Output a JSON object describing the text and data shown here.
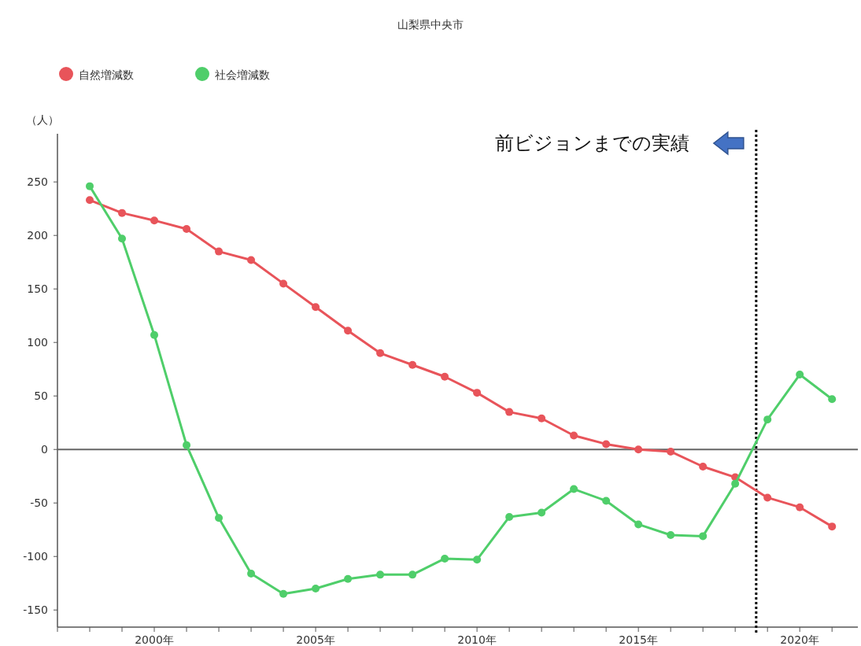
{
  "chart_data": {
    "type": "line",
    "title": "山梨県中央市",
    "ylabel": "（人）",
    "x": [
      1998,
      1999,
      2000,
      2001,
      2002,
      2003,
      2004,
      2005,
      2006,
      2007,
      2008,
      2009,
      2010,
      2011,
      2012,
      2013,
      2014,
      2015,
      2016,
      2017,
      2018,
      2019,
      2020,
      2021
    ],
    "series": [
      {
        "name": "自然増減数",
        "color": "#e8545a",
        "values": [
          233,
          221,
          214,
          206,
          185,
          177,
          155,
          133,
          111,
          90,
          79,
          68,
          53,
          35,
          29,
          13,
          5,
          0,
          -2,
          -16,
          -26,
          -45,
          -54,
          -72
        ]
      },
      {
        "name": "社会増減数",
        "color": "#4fce6a",
        "values": [
          246,
          197,
          107,
          4,
          -64,
          -116,
          -135,
          -130,
          -121,
          -117,
          -117,
          -102,
          -103,
          -63,
          -59,
          -37,
          -48,
          -70,
          -80,
          -81,
          -32,
          28,
          70,
          47
        ]
      }
    ],
    "xlim": [
      1997,
      2021.8
    ],
    "xticks": [
      {
        "value": 1997,
        "label": null
      },
      {
        "value": 1998,
        "label": null
      },
      {
        "value": 1999,
        "label": null
      },
      {
        "value": 2000,
        "label": "2000年"
      },
      {
        "value": 2001,
        "label": null
      },
      {
        "value": 2002,
        "label": null
      },
      {
        "value": 2003,
        "label": null
      },
      {
        "value": 2004,
        "label": null
      },
      {
        "value": 2005,
        "label": "2005年"
      },
      {
        "value": 2006,
        "label": null
      },
      {
        "value": 2007,
        "label": null
      },
      {
        "value": 2008,
        "label": null
      },
      {
        "value": 2009,
        "label": null
      },
      {
        "value": 2010,
        "label": "2010年"
      },
      {
        "value": 2011,
        "label": null
      },
      {
        "value": 2012,
        "label": null
      },
      {
        "value": 2013,
        "label": null
      },
      {
        "value": 2014,
        "label": null
      },
      {
        "value": 2015,
        "label": "2015年"
      },
      {
        "value": 2016,
        "label": null
      },
      {
        "value": 2017,
        "label": null
      },
      {
        "value": 2018,
        "label": null
      },
      {
        "value": 2019,
        "label": null
      },
      {
        "value": 2020,
        "label": "2020年"
      },
      {
        "value": 2021,
        "label": null
      }
    ],
    "ylim": [
      -166,
      295
    ],
    "yticks": [
      -150,
      -100,
      -50,
      0,
      50,
      100,
      150,
      200,
      250
    ],
    "ref_lines": [
      {
        "axis": "y",
        "value": 0,
        "color": "#666666",
        "line_style": "solid"
      },
      {
        "axis": "x",
        "value": 2018.65,
        "color": "#000000",
        "line_style": "dotted"
      }
    ],
    "annotations": [
      "前ビジョンまでの実績"
    ],
    "marker": "circle",
    "line_style": "solid",
    "grid": false,
    "legend": "top left"
  }
}
